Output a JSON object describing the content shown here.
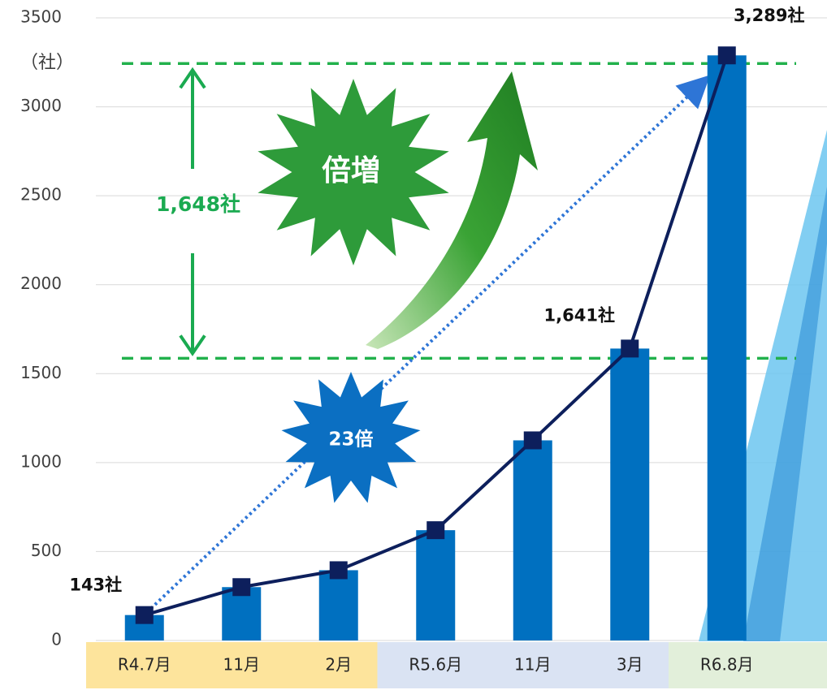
{
  "chart_data": {
    "type": "bar_line",
    "categories": [
      "R4.7月",
      "11月",
      "2月",
      "R5.6月",
      "11月",
      "3月",
      "R6.8月"
    ],
    "values": [
      143,
      300,
      395,
      620,
      1125,
      1641,
      3289
    ],
    "value_labels": [
      "143社",
      null,
      null,
      null,
      null,
      "1,641社",
      "3,289社"
    ],
    "color": "#0070c0",
    "line_color": "#0d1f5c",
    "category_band_colors": [
      "#fde49c",
      "#fde49c",
      "#fde49c",
      "#dae3f3",
      "#dae3f3",
      "#dae3f3",
      "#e2efda"
    ],
    "ylim": [
      0,
      3500
    ],
    "yticks": [
      0,
      500,
      1000,
      1500,
      2000,
      2500,
      3000,
      3500
    ],
    "grid": true,
    "annotations": {
      "unit": "（社）",
      "difference": "1,648社",
      "doubled": "倍増",
      "growth": "23倍"
    }
  }
}
